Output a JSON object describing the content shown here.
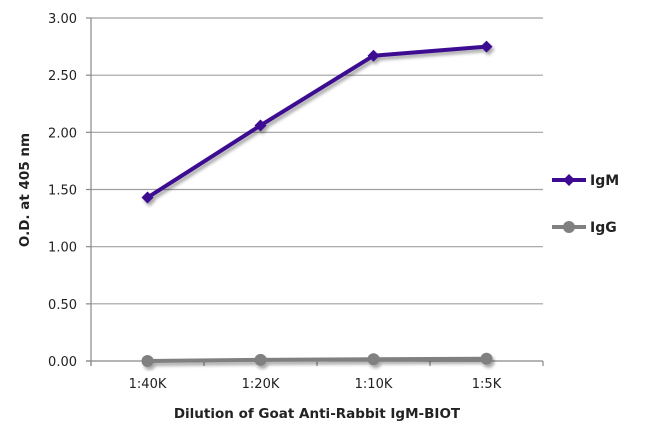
{
  "chart_data": {
    "type": "line",
    "title": "",
    "xlabel": "Dilution of Goat Anti-Rabbit IgM-BIOT",
    "ylabel": "O.D. at 405 nm",
    "categories": [
      "1:40K",
      "1:20K",
      "1:10K",
      "1:5K"
    ],
    "ylim": [
      0,
      3
    ],
    "yticks": [
      "0.00",
      "0.50",
      "1.00",
      "1.50",
      "2.00",
      "2.50",
      "3.00"
    ],
    "grid": true,
    "legend_position": "right",
    "series": [
      {
        "name": "IgM",
        "color": "#3d0a91",
        "marker": "diamond",
        "values": [
          1.43,
          2.06,
          2.67,
          2.75
        ]
      },
      {
        "name": "IgG",
        "color": "#808080",
        "marker": "circle",
        "values": [
          0.0,
          0.01,
          0.015,
          0.02
        ]
      }
    ]
  }
}
